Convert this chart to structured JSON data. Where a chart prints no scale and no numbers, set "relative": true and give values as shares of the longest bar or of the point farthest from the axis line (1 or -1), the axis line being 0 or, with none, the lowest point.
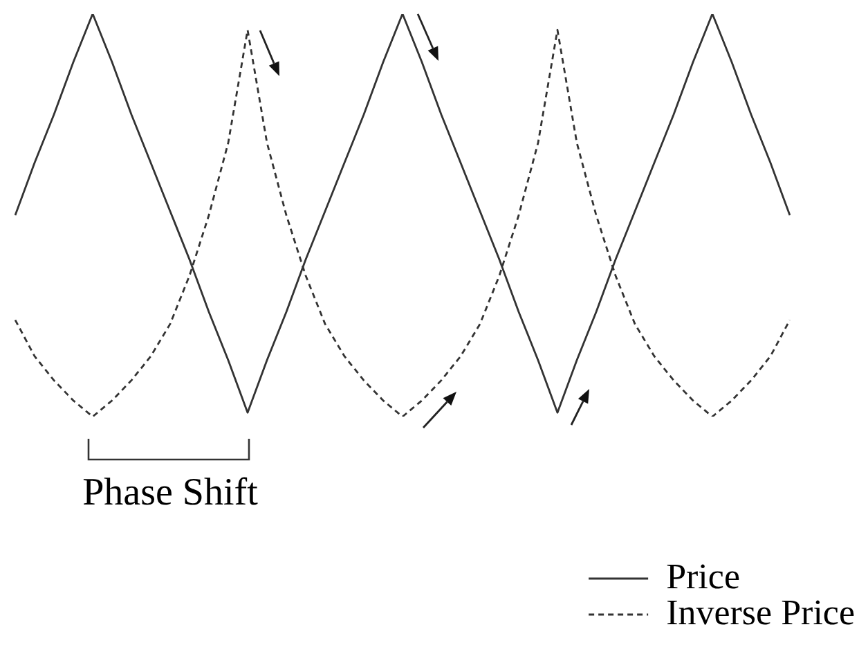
{
  "chart_data": {
    "type": "line",
    "relative": true,
    "legend": "bottom right",
    "annotations": [
      "Phase Shift"
    ],
    "categories": [
      null,
      null,
      null,
      null,
      null,
      null,
      null,
      null,
      null,
      null,
      null,
      null,
      null,
      null,
      null,
      null,
      null,
      null,
      null,
      null,
      null,
      null,
      null,
      null,
      null,
      null,
      null,
      null,
      null,
      null,
      null,
      null,
      null,
      null,
      null,
      null,
      null,
      null,
      null,
      null,
      null
    ],
    "series": [
      {
        "name": "Price",
        "color": "#333333",
        "line_style": "solid",
        "values": [
          0.5,
          0.63,
          0.75,
          0.88,
          1.0,
          0.88,
          0.75,
          0.63,
          0.51,
          0.39,
          0.26,
          0.14,
          0.01,
          0.14,
          0.26,
          0.39,
          0.51,
          0.63,
          0.75,
          0.88,
          1.0,
          0.88,
          0.75,
          0.63,
          0.51,
          0.39,
          0.26,
          0.14,
          0.01,
          0.14,
          0.26,
          0.39,
          0.51,
          0.63,
          0.75,
          0.88,
          1.0,
          0.88,
          0.75,
          0.63,
          0.5
        ]
      },
      {
        "name": "Inverse Price",
        "color": "#333333",
        "line_style": "dashed",
        "values": [
          0.24,
          0.15,
          0.09,
          0.04,
          0,
          0.04,
          0.09,
          0.15,
          0.23,
          0.35,
          0.5,
          0.68,
          0.96,
          0.68,
          0.5,
          0.35,
          0.23,
          0.15,
          0.09,
          0.04,
          0,
          0.04,
          0.09,
          0.15,
          0.23,
          0.35,
          0.5,
          0.68,
          0.96,
          0.68,
          0.5,
          0.35,
          0.23,
          0.15,
          0.09,
          0.04,
          0,
          0.04,
          0.09,
          0.15,
          0.24
        ]
      }
    ]
  }
}
